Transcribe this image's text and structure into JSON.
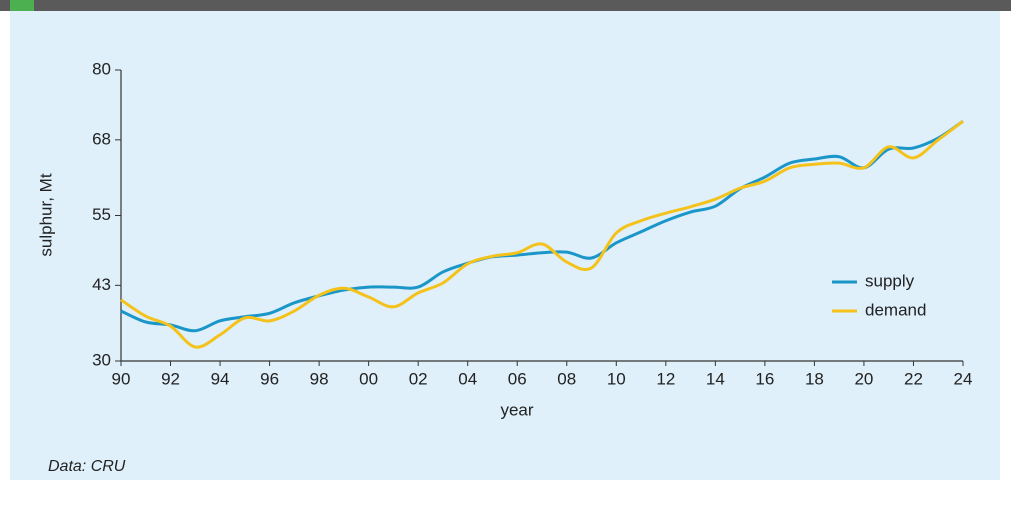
{
  "chart_data": {
    "type": "line",
    "x": [
      1990,
      1991,
      1992,
      1993,
      1994,
      1995,
      1996,
      1997,
      1998,
      1999,
      2000,
      2001,
      2002,
      2003,
      2004,
      2005,
      2006,
      2007,
      2008,
      2009,
      2010,
      2011,
      2012,
      2013,
      2014,
      2015,
      2016,
      2017,
      2018,
      2019,
      2020,
      2021,
      2022,
      2023,
      2024
    ],
    "series": [
      {
        "name": "supply",
        "color": "#1a96c8",
        "values": [
          38.6,
          36.7,
          36.2,
          35.2,
          36.9,
          37.6,
          38.2,
          40.0,
          41.2,
          42.2,
          42.7,
          42.7,
          42.7,
          45.3,
          46.8,
          47.9,
          48.2,
          48.6,
          48.7,
          47.7,
          50.3,
          52.2,
          54.1,
          55.6,
          56.6,
          59.6,
          61.6,
          64.0,
          64.7,
          65.1,
          63.2,
          66.4,
          66.6,
          68.3,
          71.2
        ]
      },
      {
        "name": "demand",
        "color": "#f5c21b",
        "values": [
          40.5,
          37.7,
          36.0,
          32.4,
          34.5,
          37.4,
          36.9,
          38.6,
          41.3,
          42.5,
          41.0,
          39.3,
          41.7,
          43.4,
          46.7,
          48.0,
          48.6,
          50.1,
          47.0,
          46.0,
          52.0,
          54.1,
          55.4,
          56.5,
          57.8,
          59.7,
          60.9,
          63.2,
          63.8,
          64.0,
          63.2,
          66.8,
          64.9,
          68.0,
          71.2
        ]
      }
    ],
    "xlim": [
      1990,
      2024
    ],
    "xticks": [
      {
        "value": 1990,
        "label": "90"
      },
      {
        "value": 1992,
        "label": "92"
      },
      {
        "value": 1994,
        "label": "94"
      },
      {
        "value": 1996,
        "label": "96"
      },
      {
        "value": 1998,
        "label": "98"
      },
      {
        "value": 2000,
        "label": "00"
      },
      {
        "value": 2002,
        "label": "02"
      },
      {
        "value": 2004,
        "label": "04"
      },
      {
        "value": 2006,
        "label": "06"
      },
      {
        "value": 2008,
        "label": "08"
      },
      {
        "value": 2010,
        "label": "10"
      },
      {
        "value": 2012,
        "label": "12"
      },
      {
        "value": 2014,
        "label": "14"
      },
      {
        "value": 2016,
        "label": "16"
      },
      {
        "value": 2018,
        "label": "18"
      },
      {
        "value": 2020,
        "label": "20"
      },
      {
        "value": 2022,
        "label": "22"
      },
      {
        "value": 2024,
        "label": "24"
      }
    ],
    "ylim": [
      30,
      80
    ],
    "yticks": [
      30,
      43,
      55,
      68,
      80
    ],
    "x_label": "year",
    "y_label": "sulphur, Mt",
    "source": "Data: CRU",
    "legend": "right"
  }
}
